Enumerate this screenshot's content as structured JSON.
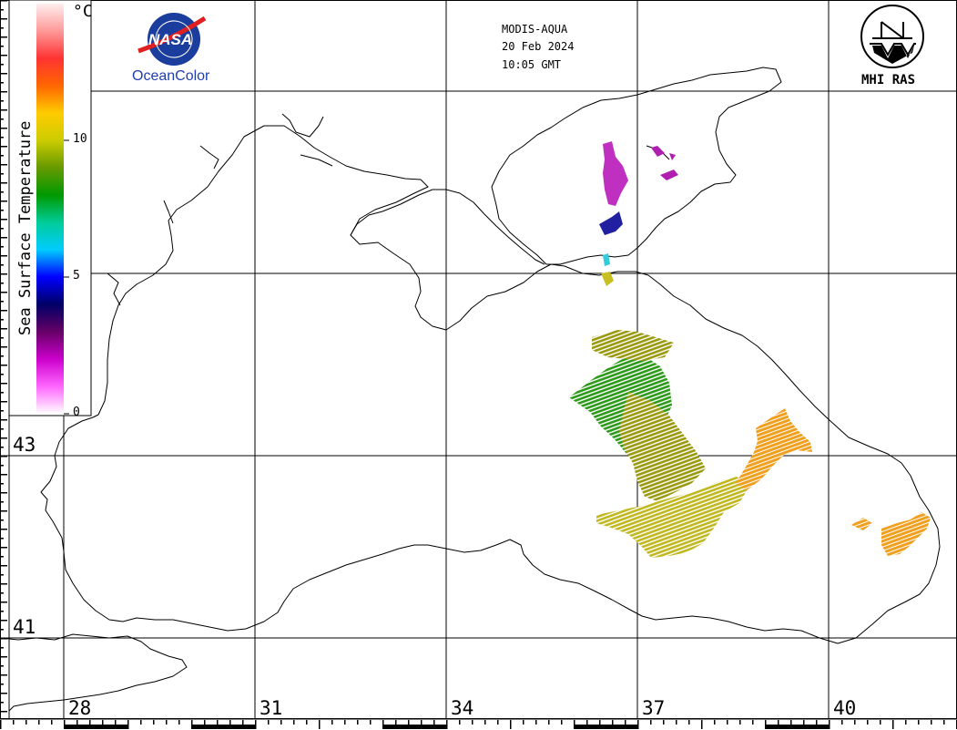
{
  "header": {
    "satellite": "MODIS-AQUA",
    "date": "20 Feb 2024",
    "time": "10:05 GMT"
  },
  "logos": {
    "nasa_text": "NASA",
    "oceancolor_text": "OceanColor",
    "mhi_text": "MHI RAS"
  },
  "colorbar": {
    "title": "Sea Surface Temperature",
    "unit": "°C",
    "ticks": [
      {
        "value": 0,
        "label": "0"
      },
      {
        "value": 5,
        "label": "5"
      },
      {
        "value": 10,
        "label": "10"
      }
    ],
    "colors": [
      "#ffffff",
      "#ff66ff",
      "#cc00cc",
      "#660066",
      "#000066",
      "#0000ff",
      "#00ccff",
      "#00cc99",
      "#009900",
      "#669900",
      "#cccc00",
      "#ffcc00",
      "#ff6600",
      "#ff3333",
      "#ff9999",
      "#ffeeee"
    ]
  },
  "grid": {
    "longitudes": [
      {
        "value": 28,
        "label": "28"
      },
      {
        "value": 31,
        "label": "31"
      },
      {
        "value": 34,
        "label": "34"
      },
      {
        "value": 37,
        "label": "37"
      },
      {
        "value": 40,
        "label": "40"
      }
    ],
    "latitudes": [
      {
        "value": 43,
        "label": "43"
      },
      {
        "value": 41,
        "label": "41"
      }
    ]
  },
  "colors": {
    "coast": "#000000",
    "grid": "#000000",
    "green": "#2e9a1c",
    "olive": "#9a9a10",
    "yellow_olive": "#c8c020",
    "orange": "#f0a020",
    "magenta": "#c030c0",
    "navy": "#2020a0"
  }
}
